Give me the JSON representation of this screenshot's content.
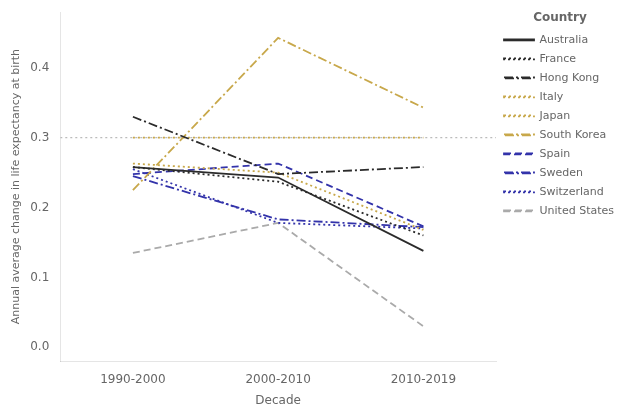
{
  "chart_data": {
    "type": "line",
    "xlabel": "Decade",
    "ylabel": "Annual average change in life expectancy at birth",
    "legend_title": "Country",
    "categories": [
      "1990-2000",
      "2000-2010",
      "2010-2019"
    ],
    "series": [
      {
        "name": "Australia",
        "color": "#2b2b2b",
        "line_style": "solid",
        "values": [
          0.258,
          0.243,
          0.138
        ]
      },
      {
        "name": "France",
        "color": "#2b2b2b",
        "line_style": "dotted",
        "values": [
          0.258,
          0.237,
          0.16
        ]
      },
      {
        "name": "Hong Kong",
        "color": "#2b2b2b",
        "line_style": "dashdot",
        "values": [
          0.33,
          0.248,
          0.258
        ]
      },
      {
        "name": "Italy",
        "color": "#c8a84b",
        "line_style": "dotted",
        "values": [
          0.3,
          0.3,
          0.3
        ]
      },
      {
        "name": "Japan",
        "color": "#c8a84b",
        "line_style": "dotted",
        "values": [
          0.263,
          0.25,
          0.168
        ]
      },
      {
        "name": "South Korea",
        "color": "#c8a84b",
        "line_style": "dashdot",
        "values": [
          0.225,
          0.443,
          0.343
        ]
      },
      {
        "name": "Spain",
        "color": "#3333aa",
        "line_style": "dashed",
        "values": [
          0.248,
          0.263,
          0.173
        ]
      },
      {
        "name": "Sweden",
        "color": "#3333aa",
        "line_style": "dashdot",
        "values": [
          0.245,
          0.183,
          0.172
        ]
      },
      {
        "name": "Switzerland",
        "color": "#3333aa",
        "line_style": "dotted",
        "values": [
          0.255,
          0.178,
          0.17
        ]
      },
      {
        "name": "United States",
        "color": "#aaaaaa",
        "line_style": "dashed",
        "values": [
          0.135,
          0.178,
          0.03
        ]
      }
    ],
    "reference_line": {
      "value": 0.3,
      "color": "#aaaaaa",
      "line_style": "dotted"
    },
    "ylim": [
      -0.02,
      0.48
    ],
    "yticks": [
      {
        "value": 0,
        "label": "0.0"
      },
      0.1,
      0.2,
      0.3,
      0.4
    ],
    "grid": false,
    "legend": "right"
  }
}
